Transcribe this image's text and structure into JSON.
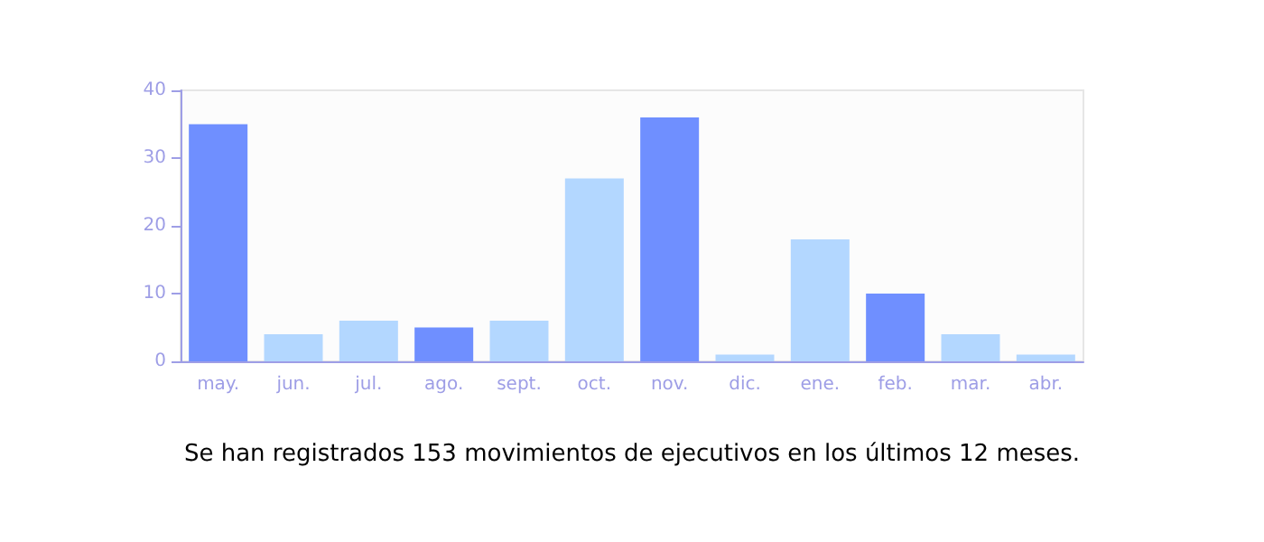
{
  "chart_data": {
    "type": "bar",
    "categories": [
      "may.",
      "jun.",
      "jul.",
      "ago.",
      "sept.",
      "oct.",
      "nov.",
      "dic.",
      "ene.",
      "feb.",
      "mar.",
      "abr."
    ],
    "values": [
      35,
      4,
      6,
      5,
      6,
      27,
      36,
      1,
      18,
      10,
      4,
      1
    ],
    "colors": [
      "#6f8fff",
      "#b3d7ff",
      "#b3d7ff",
      "#6f8fff",
      "#b3d7ff",
      "#b3d7ff",
      "#6f8fff",
      "#b3d7ff",
      "#b3d7ff",
      "#6f8fff",
      "#b3d7ff",
      "#b3d7ff"
    ],
    "ylim": [
      0,
      40
    ],
    "yticks": [
      0,
      10,
      20,
      30,
      40
    ],
    "grid": false,
    "annotations": [
      "Se han registrados 153 movimientos de ejecutivos en los últimos 12 meses."
    ]
  }
}
